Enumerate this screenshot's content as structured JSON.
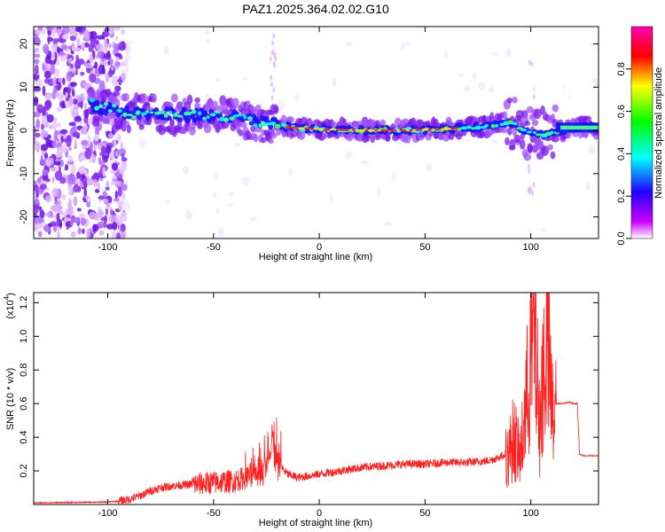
{
  "title": "PAZ1.2025.364.02.02.G10",
  "chart_data": [
    {
      "type": "heatmap",
      "xlabel": "Height of straight line (km)",
      "ylabel": "Frequency (Hz)",
      "xlim": [
        -135,
        132
      ],
      "ylim": [
        -25,
        24
      ],
      "xticks": [
        -100,
        -50,
        0,
        50,
        100
      ],
      "yticks": [
        -20,
        -10,
        0,
        10,
        20
      ],
      "xtick_labels": [
        "-100",
        "-50",
        "0",
        "50",
        "100"
      ],
      "ytick_labels": [
        "-20",
        "-10",
        "0",
        "10",
        "20"
      ],
      "description_trace": {
        "x": [
          -108,
          -90,
          -60,
          -40,
          -25,
          -10,
          0,
          20,
          40,
          60,
          80,
          90,
          97,
          105,
          115,
          132
        ],
        "freq": [
          6,
          4,
          3.5,
          3,
          1.5,
          0.5,
          0.3,
          0,
          0,
          0.3,
          1,
          2,
          0,
          -1,
          0,
          1
        ]
      },
      "colorbar": {
        "label": "Normalized spectral amplitude",
        "range": [
          0.0,
          1.0
        ],
        "ticks": [
          0.0,
          0.2,
          0.4,
          0.6,
          0.8
        ],
        "tick_labels": [
          "0.0",
          "0.2",
          "0.4",
          "0.6",
          "0.8"
        ],
        "colors": [
          "#ffffff",
          "#cc00ff",
          "#0000ff",
          "#00ffff",
          "#00ff00",
          "#ffff00",
          "#ff0000",
          "#ff00cc"
        ]
      }
    },
    {
      "type": "line",
      "xlabel": "Height of straight line (km)",
      "ylabel": "SNR (10 * v/v)",
      "y_multiplier": "(x10",
      "y_multiplier_exp": "4",
      "y_multiplier_close": ")",
      "xlim": [
        -135,
        132
      ],
      "ylim": [
        0,
        1.26
      ],
      "xticks": [
        -100,
        -50,
        0,
        50,
        100
      ],
      "yticks": [
        0.2,
        0.4,
        0.6,
        0.8,
        1.0,
        1.2
      ],
      "xtick_labels": [
        "-100",
        "-50",
        "0",
        "50",
        "100"
      ],
      "ytick_labels": [
        "0.2",
        "0.4",
        "0.6",
        "0.8",
        "1.0",
        "1.2"
      ],
      "color": "#ff2020",
      "series": [
        {
          "name": "SNR",
          "x": [
            -135,
            -100,
            -95,
            -90,
            -85,
            -80,
            -75,
            -70,
            -60,
            -50,
            -40,
            -35,
            -30,
            -25,
            -22,
            -20,
            -15,
            -10,
            -5,
            0,
            10,
            20,
            30,
            40,
            50,
            60,
            70,
            80,
            85,
            88,
            90,
            92,
            95,
            98,
            100,
            102,
            104,
            106,
            108,
            110,
            112,
            115,
            118,
            120,
            122,
            123,
            125,
            128,
            132
          ],
          "y": [
            0.01,
            0.015,
            0.02,
            0.03,
            0.05,
            0.08,
            0.1,
            0.11,
            0.12,
            0.13,
            0.14,
            0.16,
            0.2,
            0.22,
            0.4,
            0.25,
            0.18,
            0.16,
            0.17,
            0.18,
            0.2,
            0.22,
            0.23,
            0.24,
            0.24,
            0.25,
            0.25,
            0.26,
            0.28,
            0.3,
            0.35,
            0.45,
            0.3,
            0.7,
            0.95,
            1.2,
            0.5,
            0.9,
            1.1,
            0.6,
            0.6,
            0.6,
            0.61,
            0.6,
            0.6,
            0.3,
            0.29,
            0.29,
            0.29
          ]
        }
      ]
    }
  ]
}
